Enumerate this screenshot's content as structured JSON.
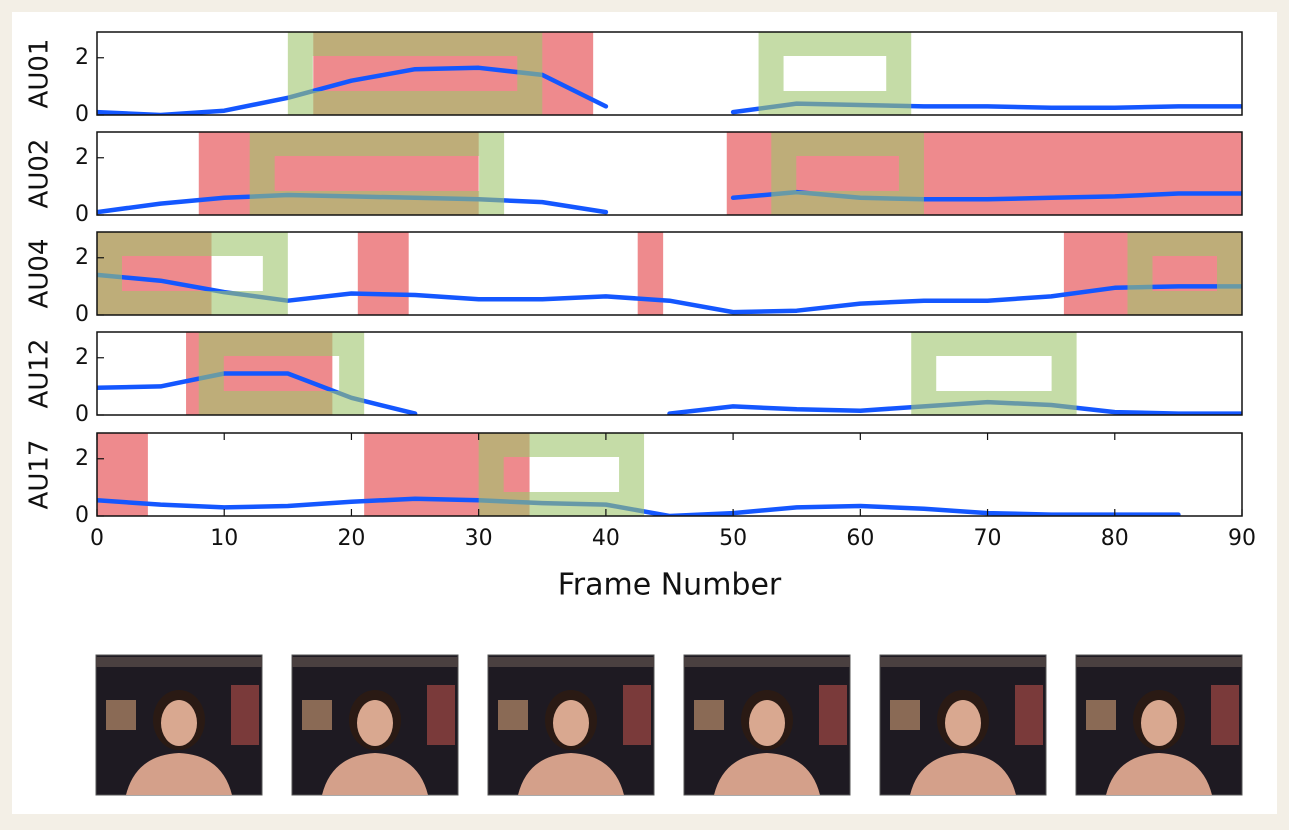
{
  "chart_data": [
    {
      "type": "line",
      "ylabel": "AU01",
      "xlim": [
        0,
        90
      ],
      "ylim": [
        0,
        2.9
      ],
      "yticks": [
        0,
        2
      ],
      "x": [
        0,
        5,
        10,
        15,
        20,
        25,
        30,
        35,
        40,
        45,
        50,
        55,
        60,
        65,
        70,
        75,
        80,
        85,
        90
      ],
      "series": [
        {
          "color": "#1457ff",
          "values": [
            0.1,
            0,
            0.15,
            0.6,
            1.2,
            1.6,
            1.65,
            1.4,
            0.3,
            null,
            0.1,
            0.4,
            0.35,
            0.3,
            0.3,
            0.25,
            0.25,
            0.3,
            0.3
          ]
        }
      ],
      "red_spans": [
        [
          17,
          39
        ]
      ],
      "red_color": "#eb7679",
      "green_boxes": [
        [
          15,
          35
        ],
        [
          52,
          64
        ]
      ],
      "green_color": "#9fc56c"
    },
    {
      "type": "line",
      "ylabel": "AU02",
      "xlim": [
        0,
        90
      ],
      "ylim": [
        0,
        2.9
      ],
      "yticks": [
        0,
        2
      ],
      "x": [
        0,
        5,
        10,
        15,
        20,
        25,
        30,
        35,
        40,
        45,
        50,
        55,
        60,
        65,
        70,
        75,
        80,
        85,
        90
      ],
      "series": [
        {
          "color": "#1457ff",
          "values": [
            0.1,
            0.4,
            0.6,
            0.7,
            0.65,
            0.6,
            0.55,
            0.45,
            0.1,
            null,
            0.6,
            0.8,
            0.6,
            0.55,
            0.55,
            0.6,
            0.65,
            0.75,
            0.75
          ]
        }
      ],
      "red_spans": [
        [
          8,
          30
        ],
        [
          49.5,
          90
        ]
      ],
      "red_color": "#eb7679",
      "green_boxes": [
        [
          12,
          32
        ],
        [
          53,
          65
        ]
      ],
      "green_color": "#9fc56c"
    },
    {
      "type": "line",
      "ylabel": "AU04",
      "xlim": [
        0,
        90
      ],
      "ylim": [
        0,
        2.9
      ],
      "yticks": [
        0,
        2
      ],
      "x": [
        0,
        5,
        10,
        15,
        20,
        25,
        30,
        35,
        40,
        45,
        50,
        55,
        60,
        65,
        70,
        75,
        80,
        85,
        90
      ],
      "series": [
        {
          "color": "#1457ff",
          "values": [
            1.4,
            1.2,
            0.8,
            0.5,
            0.75,
            0.7,
            0.55,
            0.55,
            0.65,
            0.5,
            0.1,
            0.15,
            0.4,
            0.5,
            0.5,
            0.65,
            0.95,
            1.0,
            1.0
          ]
        }
      ],
      "red_spans": [
        [
          0,
          9
        ],
        [
          20.5,
          24.5
        ],
        [
          42.5,
          44.5
        ],
        [
          76,
          90
        ]
      ],
      "red_color": "#eb7679",
      "green_boxes": [
        [
          0,
          15
        ],
        [
          81,
          90
        ]
      ],
      "green_color": "#9fc56c"
    },
    {
      "type": "line",
      "ylabel": "AU12",
      "xlim": [
        0,
        90
      ],
      "ylim": [
        0,
        2.9
      ],
      "yticks": [
        0,
        2
      ],
      "x": [
        0,
        5,
        10,
        15,
        20,
        25,
        30,
        35,
        40,
        45,
        50,
        55,
        60,
        65,
        70,
        75,
        80,
        85,
        90
      ],
      "series": [
        {
          "color": "#1457ff",
          "values": [
            0.95,
            1.0,
            1.45,
            1.45,
            0.6,
            0.05,
            null,
            null,
            null,
            0.05,
            0.3,
            0.2,
            0.15,
            0.3,
            0.45,
            0.35,
            0.1,
            0.05,
            0.05
          ]
        }
      ],
      "red_spans": [
        [
          7,
          18.5
        ]
      ],
      "red_color": "#eb7679",
      "green_boxes": [
        [
          8,
          21
        ],
        [
          64,
          77
        ]
      ],
      "green_color": "#9fc56c"
    },
    {
      "type": "line",
      "ylabel": "AU17",
      "xlabel": "Frame Number",
      "xlim": [
        0,
        90
      ],
      "ylim": [
        0,
        2.9
      ],
      "yticks": [
        0,
        2
      ],
      "xticks": [
        0,
        10,
        20,
        30,
        40,
        50,
        60,
        70,
        80,
        90
      ],
      "x": [
        0,
        5,
        10,
        15,
        20,
        25,
        30,
        35,
        40,
        45,
        50,
        55,
        60,
        65,
        70,
        75,
        80,
        85,
        90
      ],
      "series": [
        {
          "color": "#1457ff",
          "values": [
            0.55,
            0.4,
            0.3,
            0.35,
            0.5,
            0.6,
            0.55,
            0.45,
            0.4,
            0,
            0.1,
            0.3,
            0.35,
            0.25,
            0.1,
            0.05,
            0.05,
            0.05,
            null
          ]
        }
      ],
      "red_spans": [
        [
          0,
          4
        ],
        [
          21,
          34
        ]
      ],
      "red_color": "#eb7679",
      "green_boxes": [
        [
          30,
          43
        ]
      ],
      "green_color": "#9fc56c"
    }
  ]
}
